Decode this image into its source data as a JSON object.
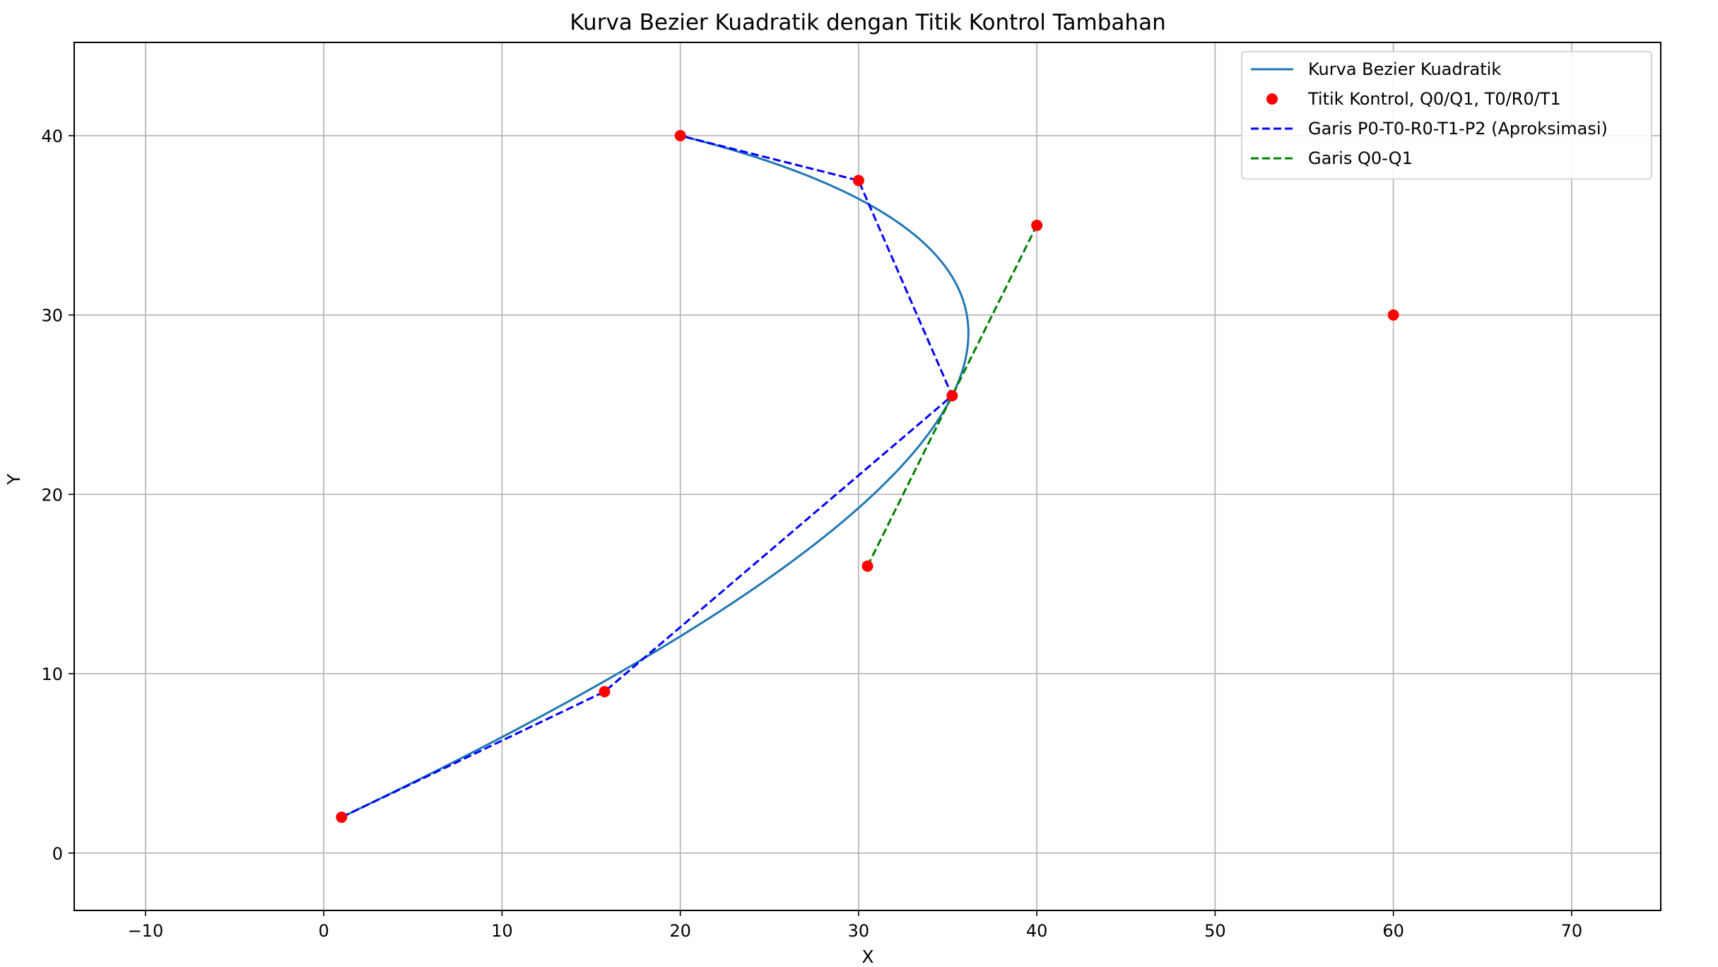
{
  "chart_data": {
    "type": "line",
    "title": "Kurva Bezier Kuadratik dengan Titik Kontrol Tambahan",
    "xlabel": "X",
    "ylabel": "Y",
    "xlim": [
      -14,
      75
    ],
    "ylim": [
      -3.2,
      45.2
    ],
    "xticks": [
      -10,
      0,
      10,
      20,
      30,
      40,
      50,
      60,
      70
    ],
    "yticks": [
      0,
      10,
      20,
      30,
      40
    ],
    "grid": true,
    "legend_position": "upper-right",
    "colors": {
      "curve": "#1f77b4",
      "points": "#ff0000",
      "approx_line": "#0000ff",
      "q_line": "#008000",
      "grid": "#b0b0b0"
    },
    "series": [
      {
        "name": "Kurva Bezier Kuadratik",
        "kind": "bezier",
        "control_points": [
          [
            1,
            2
          ],
          [
            60,
            30
          ],
          [
            20,
            40
          ]
        ]
      },
      {
        "name": "Titik Kontrol, Q0/Q1, T0/R0/T1",
        "kind": "scatter",
        "points": [
          [
            1,
            2
          ],
          [
            15.75,
            9
          ],
          [
            35.25,
            25.5
          ],
          [
            30,
            37.5
          ],
          [
            20,
            40
          ],
          [
            60,
            30
          ],
          [
            30.5,
            16
          ],
          [
            40,
            35
          ]
        ]
      },
      {
        "name": "Garis P0-T0-R0-T1-P2 (Aproksimasi)",
        "kind": "dashed",
        "points": [
          [
            1,
            2
          ],
          [
            15.75,
            9
          ],
          [
            35.25,
            25.5
          ],
          [
            30,
            37.5
          ],
          [
            20,
            40
          ]
        ]
      },
      {
        "name": "Garis Q0-Q1",
        "kind": "dashed",
        "points": [
          [
            30.5,
            16
          ],
          [
            40,
            35
          ]
        ]
      }
    ]
  }
}
